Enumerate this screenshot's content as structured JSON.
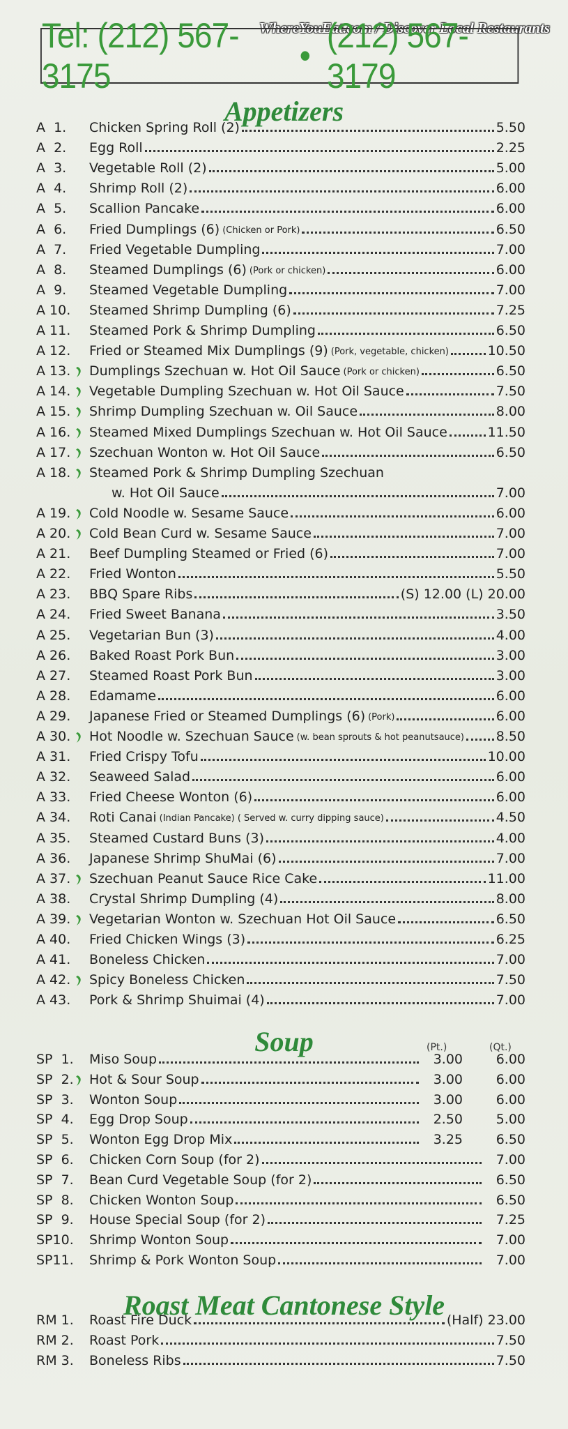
{
  "header": {
    "watermark": "WhereYouEat.com / Discover Local Restaurants",
    "phone1": "Tel: (212) 567-3175",
    "separator": "•",
    "phone2": "(212) 567-3179"
  },
  "sections": [
    {
      "title": "Appetizers",
      "items": [
        {
          "code": "A  1.",
          "name": "Chicken Spring Roll (2)",
          "price": "5.50"
        },
        {
          "code": "A  2.",
          "name": "Egg Roll",
          "price": "2.25"
        },
        {
          "code": "A  3.",
          "name": "Vegetable Roll (2)",
          "price": "5.00"
        },
        {
          "code": "A  4.",
          "name": "Shrimp Roll (2)",
          "price": "6.00"
        },
        {
          "code": "A  5.",
          "name": "Scallion Pancake",
          "price": "6.00"
        },
        {
          "code": "A  6.",
          "name": "Fried Dumplings (6)",
          "note": "(Chicken or Pork)",
          "price": "6.50"
        },
        {
          "code": "A  7.",
          "name": "Fried Vegetable Dumpling",
          "price": "7.00"
        },
        {
          "code": "A  8.",
          "name": "Steamed Dumplings (6)",
          "note": "(Pork or chicken)",
          "price": "6.00"
        },
        {
          "code": "A  9.",
          "name": "Steamed Vegetable Dumpling",
          "price": "7.00"
        },
        {
          "code": "A 10.",
          "name": "Steamed Shrimp Dumpling (6)",
          "price": "7.25"
        },
        {
          "code": "A 11.",
          "name": "Steamed Pork & Shrimp Dumpling",
          "price": "6.50"
        },
        {
          "code": "A 12.",
          "name": "Fried or Steamed Mix Dumplings (9)",
          "note": "(Pork, vegetable, chicken)",
          "price": "10.50"
        },
        {
          "code": "A 13.",
          "spicy": true,
          "name": "Dumplings Szechuan w. Hot Oil Sauce",
          "note": "(Pork or chicken)",
          "price": "6.50"
        },
        {
          "code": "A 14.",
          "spicy": true,
          "name": "Vegetable Dumpling Szechuan w. Hot Oil Sauce",
          "price": "7.50"
        },
        {
          "code": "A 15.",
          "spicy": true,
          "name": "Shrimp Dumpling Szechuan w. Oil Sauce",
          "price": "8.00"
        },
        {
          "code": "A 16.",
          "spicy": true,
          "name": "Steamed Mixed Dumplings Szechuan w. Hot Oil Sauce",
          "price": "11.50"
        },
        {
          "code": "A 17.",
          "spicy": true,
          "name": "Szechuan Wonton w. Hot Oil Sauce",
          "price": "6.50"
        },
        {
          "code": "A 18.",
          "spicy": true,
          "name": "Steamed Pork & Shrimp Dumpling Szechuan",
          "name2": "w. Hot Oil Sauce",
          "price": "7.00"
        },
        {
          "code": "A 19.",
          "spicy": true,
          "name": "Cold Noodle w. Sesame Sauce",
          "price": "6.00"
        },
        {
          "code": "A 20.",
          "spicy": true,
          "name": "Cold Bean Curd w. Sesame Sauce",
          "price": "7.00"
        },
        {
          "code": "A 21.",
          "name": "Beef Dumpling Steamed or Fried (6)",
          "price": "7.00"
        },
        {
          "code": "A 22.",
          "name": "Fried Wonton",
          "price": "5.50"
        },
        {
          "code": "A 23.",
          "name": "BBQ Spare Ribs",
          "price": "(S) 12.00 (L) 20.00"
        },
        {
          "code": "A 24.",
          "name": "Fried Sweet Banana",
          "price": "3.50"
        },
        {
          "code": "A 25.",
          "name": "Vegetarian Bun (3)",
          "price": "4.00"
        },
        {
          "code": "A 26.",
          "name": "Baked Roast Pork Bun",
          "price": "3.00"
        },
        {
          "code": "A 27.",
          "name": "Steamed Roast Pork Bun",
          "price": "3.00"
        },
        {
          "code": "A 28.",
          "name": "Edamame",
          "price": "6.00"
        },
        {
          "code": "A 29.",
          "name": "Japanese Fried or Steamed Dumplings (6)",
          "note": "(Pork)",
          "price": "6.00"
        },
        {
          "code": "A 30.",
          "spicy": true,
          "name": "Hot Noodle w. Szechuan Sauce",
          "note": "(w. bean sprouts & hot peanutsauce)",
          "price": "8.50"
        },
        {
          "code": "A 31.",
          "name": "Fried Crispy Tofu",
          "price": "10.00"
        },
        {
          "code": "A 32.",
          "name": "Seaweed Salad",
          "price": "6.00"
        },
        {
          "code": "A 33.",
          "name": "Fried Cheese Wonton (6)",
          "price": "6.00"
        },
        {
          "code": "A 34.",
          "name": "Roti Canai",
          "note": "(Indian Pancake) ( Served w. curry dipping sauce)",
          "price": "4.50"
        },
        {
          "code": "A 35.",
          "name": "Steamed Custard Buns (3)",
          "price": "4.00"
        },
        {
          "code": "A 36.",
          "name": "Japanese Shrimp ShuMai (6)",
          "price": "7.00"
        },
        {
          "code": "A 37.",
          "spicy": true,
          "name": "Szechuan Peanut Sauce Rice Cake",
          "price": "11.00"
        },
        {
          "code": "A 38.",
          "name": "Crystal Shrimp Dumpling (4)",
          "price": "8.00"
        },
        {
          "code": "A 39.",
          "spicy": true,
          "name": "Vegetarian Wonton w. Szechuan Hot Oil Sauce",
          "price": "6.50"
        },
        {
          "code": "A 40.",
          "name": "Fried Chicken Wings (3)",
          "price": "6.25"
        },
        {
          "code": "A 41.",
          "name": "Boneless Chicken",
          "price": "7.00"
        },
        {
          "code": "A 42.",
          "spicy": true,
          "name": "Spicy Boneless Chicken",
          "price": "7.50"
        },
        {
          "code": "A 43.",
          "name": "Pork & Shrimp Shuimai (4)",
          "price": "7.00"
        }
      ]
    },
    {
      "title": "Soup",
      "columns": [
        "(Pt.)",
        "(Qt.)"
      ],
      "items": [
        {
          "code": "SP  1.",
          "name": "Miso Soup",
          "pt": "3.00",
          "qt": "6.00"
        },
        {
          "code": "SP  2.",
          "spicy": true,
          "name": "Hot & Sour Soup",
          "pt": "3.00",
          "qt": "6.00"
        },
        {
          "code": "SP  3.",
          "name": "Wonton Soup",
          "pt": "3.00",
          "qt": "6.00"
        },
        {
          "code": "SP  4.",
          "name": "Egg Drop Soup",
          "pt": "2.50",
          "qt": "5.00"
        },
        {
          "code": "SP  5.",
          "name": "Wonton Egg Drop Mix",
          "pt": "3.25",
          "qt": "6.50"
        },
        {
          "code": "SP  6.",
          "name": "Chicken Corn Soup (for 2)",
          "qt": "7.00"
        },
        {
          "code": "SP  7.",
          "name": "Bean Curd Vegetable Soup (for 2)",
          "qt": "6.50"
        },
        {
          "code": "SP  8.",
          "name": "Chicken Wonton Soup",
          "qt": "6.50"
        },
        {
          "code": "SP  9.",
          "name": "House Special Soup (for 2)",
          "qt": "7.25"
        },
        {
          "code": "SP10.",
          "name": "Shrimp Wonton Soup",
          "qt": "7.00"
        },
        {
          "code": "SP11.",
          "name": "Shrimp & Pork Wonton Soup",
          "qt": "7.00"
        }
      ]
    },
    {
      "title": "Roast Meat Cantonese Style",
      "items": [
        {
          "code": "RM 1.",
          "name": "Roast Fire Duck",
          "price": "(Half) 23.00"
        },
        {
          "code": "RM 2.",
          "name": "Roast Pork",
          "price": "7.50"
        },
        {
          "code": "RM 3.",
          "name": "Boneless Ribs",
          "price": "7.50"
        }
      ]
    }
  ]
}
